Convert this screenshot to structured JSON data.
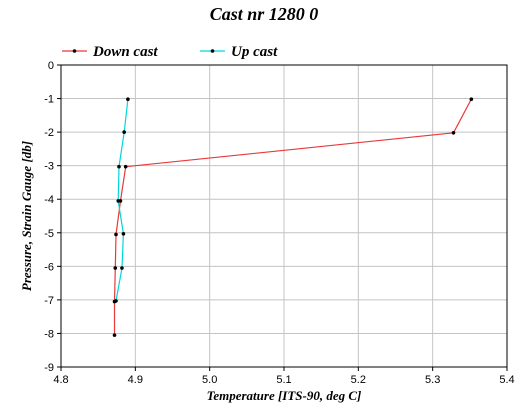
{
  "chart_data": {
    "type": "line",
    "title": "Cast nr 1280 0",
    "xlabel": "Temperature [ITS-90, deg C]",
    "ylabel": "Pressure, Strain Gauge [db]",
    "xlim": [
      4.8,
      5.4
    ],
    "ylim": [
      -9,
      0
    ],
    "x_ticks": [
      "4.8",
      "4.9",
      "5.0",
      "5.1",
      "5.2",
      "5.3",
      "5.4"
    ],
    "y_ticks": [
      "0",
      "-1",
      "-2",
      "-3",
      "-4",
      "-5",
      "-6",
      "-7",
      "-8",
      "-9"
    ],
    "grid": true,
    "legend_position": "top-left",
    "series": [
      {
        "name": "Down cast",
        "color": "#e83a3a",
        "points": [
          [
            5.352,
            -1.02
          ],
          [
            5.328,
            -2.02
          ],
          [
            4.887,
            -3.03
          ],
          [
            4.88,
            -4.05
          ],
          [
            4.874,
            -5.05
          ],
          [
            4.873,
            -6.05
          ],
          [
            4.872,
            -7.05
          ],
          [
            4.872,
            -8.05
          ]
        ]
      },
      {
        "name": "Up cast",
        "color": "#00d8d8",
        "points": [
          [
            4.89,
            -1.02
          ],
          [
            4.885,
            -2.0
          ],
          [
            4.878,
            -3.03
          ],
          [
            4.877,
            -4.05
          ],
          [
            4.884,
            -5.03
          ],
          [
            4.882,
            -6.05
          ],
          [
            4.874,
            -7.03
          ]
        ]
      }
    ]
  }
}
